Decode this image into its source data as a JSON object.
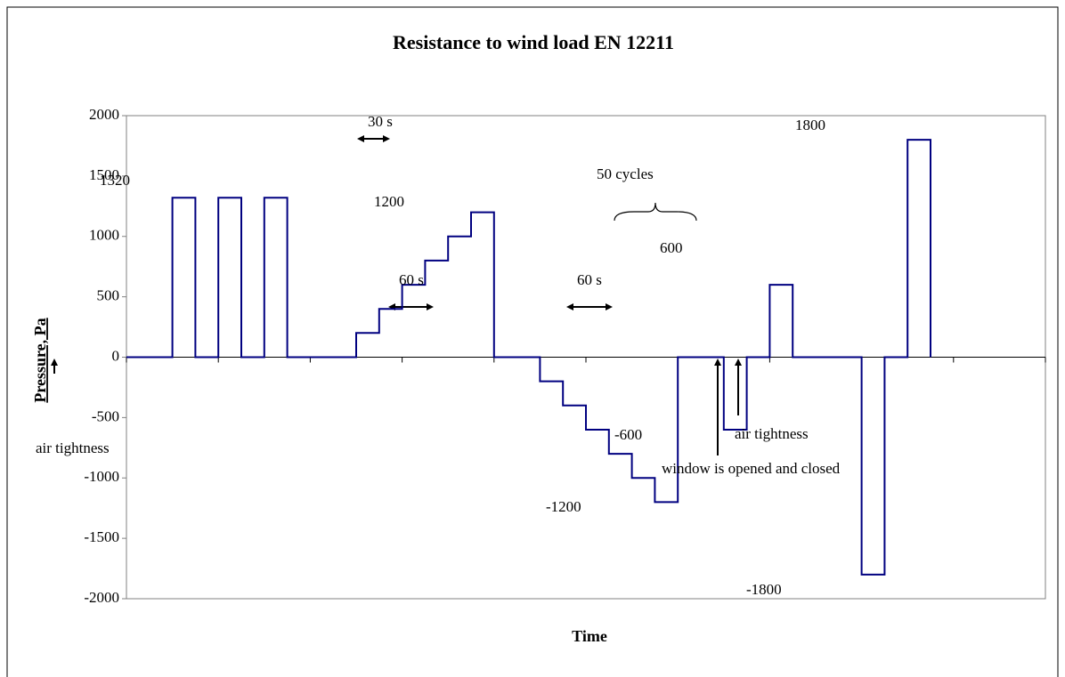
{
  "chart_data": {
    "type": "step",
    "title": "Resistance to wind load EN 12211",
    "x_label": "Time",
    "y_label": "Pressure, Pa",
    "x": [
      0,
      1,
      2,
      3,
      4,
      5,
      6,
      7,
      8,
      9,
      10,
      11,
      12,
      13,
      14,
      15,
      16,
      17,
      18,
      19,
      20,
      21,
      22,
      23,
      24,
      25,
      26,
      27,
      28,
      29,
      30,
      31,
      32,
      33,
      34,
      35
    ],
    "series": [
      {
        "color": "#000080",
        "values": [
          0,
          0,
          1320,
          0,
          1320,
          0,
          1320,
          0,
          0,
          0,
          200,
          400,
          600,
          800,
          1000,
          1200,
          0,
          0,
          -200,
          -400,
          -600,
          -800,
          -1000,
          -1200,
          0,
          0,
          -600,
          0,
          600,
          0,
          0,
          0,
          -1800,
          0,
          1800,
          0
        ]
      }
    ],
    "xlim": [
      0,
      40
    ],
    "xticks": [
      0,
      4,
      8,
      12,
      16,
      20,
      24,
      28,
      32,
      36,
      40
    ],
    "ylim": [
      -2000,
      2000
    ],
    "yticks": [
      -2000,
      -1500,
      -1000,
      -500,
      0,
      500,
      1000,
      1500,
      2000
    ],
    "grid": false,
    "annotations": [
      "30 s",
      "1320",
      "1200",
      "60 s",
      "60 s",
      "50 cycles",
      "600",
      "-600",
      "-1200",
      "1800",
      "-1800",
      "air tightness",
      "air tightness",
      "window is opened and closed"
    ]
  }
}
